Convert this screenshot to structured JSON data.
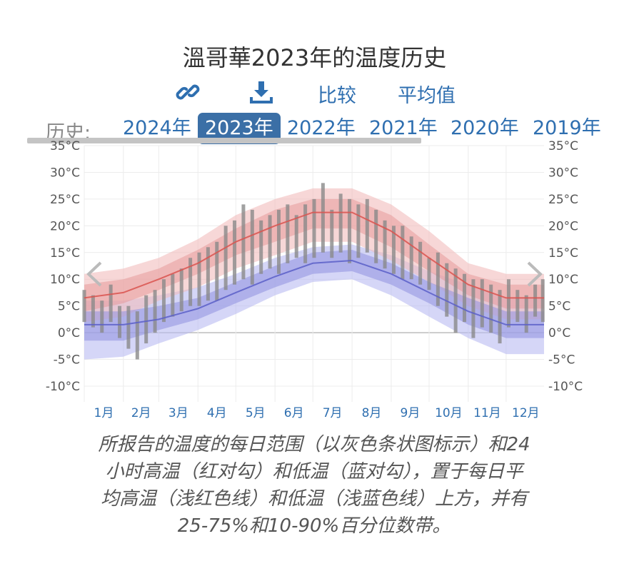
{
  "title": "溫哥華2023年的温度历史",
  "actions": {
    "compare": "比较",
    "average": "平均值"
  },
  "history": {
    "label": "历史:",
    "years": [
      "2024年",
      "2023年",
      "2022年",
      "2021年",
      "2020年",
      "2019年"
    ],
    "selected": "2023年"
  },
  "colors": {
    "accent": "#3b6fa6",
    "link": "#2f6fb0",
    "high": "#d9534f",
    "low": "#5a5fc8",
    "bars": "#8a8a8a"
  },
  "chart_data": {
    "type": "area",
    "title": "",
    "xlabel": "",
    "ylabel": "",
    "ylim": [
      -10,
      35
    ],
    "y_ticks": [
      "35°C",
      "30°C",
      "25°C",
      "20°C",
      "15°C",
      "10°C",
      "5°C",
      "0°C",
      "-5°C",
      "-10°C"
    ],
    "y_tick_values": [
      35,
      30,
      25,
      20,
      15,
      10,
      5,
      0,
      -5,
      -10
    ],
    "months": [
      "1月",
      "2月",
      "3月",
      "4月",
      "5月",
      "6月",
      "7月",
      "8月",
      "9月",
      "10月",
      "11月",
      "12月"
    ],
    "grid": true,
    "x_unit": "day of year 2023",
    "series": [
      {
        "x": [
          1,
          32,
          60,
          91,
          121,
          152,
          182,
          213,
          244,
          274,
          305,
          335,
          365
        ],
        "values": [
          6.5,
          7.5,
          10,
          13,
          17,
          20,
          22.5,
          22.5,
          19,
          14,
          9,
          6.5,
          6.5
        ]
      },
      {
        "x": [
          1,
          32,
          60,
          91,
          121,
          152,
          182,
          213,
          244,
          274,
          305,
          335,
          365
        ],
        "values": [
          1.5,
          1.5,
          2.5,
          4.5,
          7.5,
          10.5,
          13,
          13.5,
          11,
          7.5,
          4,
          1.5,
          1.5
        ]
      }
    ],
    "bands": {
      "high_10_90": [
        [
          1,
          2,
          11
        ],
        [
          32,
          3,
          12
        ],
        [
          60,
          6,
          14
        ],
        [
          91,
          8.5,
          17.5
        ],
        [
          121,
          12,
          22
        ],
        [
          152,
          14.5,
          25
        ],
        [
          182,
          17,
          27
        ],
        [
          213,
          17,
          27
        ],
        [
          244,
          13.5,
          24
        ],
        [
          274,
          9.5,
          19
        ],
        [
          305,
          5,
          13
        ],
        [
          335,
          2.5,
          11
        ],
        [
          365,
          2.5,
          11
        ]
      ],
      "high_25_75": [
        [
          1,
          4,
          9
        ],
        [
          32,
          5.5,
          10
        ],
        [
          60,
          8,
          12
        ],
        [
          91,
          11,
          15.5
        ],
        [
          121,
          14.5,
          19.5
        ],
        [
          152,
          17,
          23
        ],
        [
          182,
          19.5,
          25
        ],
        [
          213,
          19.5,
          25
        ],
        [
          244,
          16,
          22
        ],
        [
          274,
          11.5,
          16.5
        ],
        [
          305,
          7,
          11
        ],
        [
          335,
          4.5,
          9
        ],
        [
          365,
          4.5,
          9
        ]
      ],
      "low_10_90": [
        [
          1,
          -5,
          6
        ],
        [
          32,
          -4.5,
          6
        ],
        [
          60,
          -2,
          7
        ],
        [
          91,
          0.5,
          8.5
        ],
        [
          121,
          3.5,
          11
        ],
        [
          152,
          7,
          14
        ],
        [
          182,
          9.5,
          16
        ],
        [
          213,
          10,
          16.5
        ],
        [
          244,
          7,
          14.5
        ],
        [
          274,
          3,
          11.5
        ],
        [
          305,
          -1,
          9
        ],
        [
          335,
          -4,
          6.5
        ],
        [
          365,
          -4,
          6.5
        ]
      ],
      "low_25_75": [
        [
          1,
          -1.5,
          4
        ],
        [
          32,
          -1.5,
          4
        ],
        [
          60,
          0.5,
          5
        ],
        [
          91,
          2.5,
          6.5
        ],
        [
          121,
          5.5,
          9.5
        ],
        [
          152,
          8.5,
          12.5
        ],
        [
          182,
          11,
          15
        ],
        [
          213,
          11.5,
          15.5
        ],
        [
          244,
          9,
          13
        ],
        [
          274,
          5.5,
          9.5
        ],
        [
          305,
          1.5,
          6.5
        ],
        [
          335,
          -1,
          4
        ],
        [
          365,
          -1,
          4
        ]
      ]
    },
    "daily_ranges": [
      [
        1,
        2,
        8
      ],
      [
        8,
        1,
        7
      ],
      [
        15,
        0,
        6
      ],
      [
        22,
        2,
        9
      ],
      [
        29,
        -1,
        5
      ],
      [
        36,
        -3,
        5
      ],
      [
        43,
        -5,
        4
      ],
      [
        50,
        -2,
        7
      ],
      [
        57,
        0,
        8
      ],
      [
        64,
        2,
        10
      ],
      [
        71,
        3,
        11
      ],
      [
        78,
        4,
        12
      ],
      [
        85,
        5,
        14
      ],
      [
        92,
        5,
        15
      ],
      [
        99,
        6,
        16
      ],
      [
        106,
        6,
        17
      ],
      [
        113,
        8,
        20
      ],
      [
        120,
        9,
        21
      ],
      [
        127,
        10,
        24
      ],
      [
        134,
        9,
        23
      ],
      [
        141,
        11,
        21
      ],
      [
        148,
        12,
        22
      ],
      [
        155,
        11,
        23
      ],
      [
        162,
        13,
        24
      ],
      [
        169,
        14,
        22
      ],
      [
        176,
        13,
        24
      ],
      [
        183,
        14,
        25
      ],
      [
        190,
        15,
        28
      ],
      [
        197,
        14,
        23
      ],
      [
        204,
        15,
        26
      ],
      [
        211,
        13,
        25
      ],
      [
        218,
        14,
        24
      ],
      [
        225,
        15,
        25
      ],
      [
        232,
        13,
        23
      ],
      [
        239,
        12,
        21
      ],
      [
        246,
        11,
        20
      ],
      [
        253,
        10,
        20
      ],
      [
        260,
        10,
        18
      ],
      [
        267,
        9,
        17
      ],
      [
        274,
        8,
        14
      ],
      [
        281,
        5,
        15
      ],
      [
        288,
        3,
        13
      ],
      [
        295,
        0,
        12
      ],
      [
        302,
        2,
        11
      ],
      [
        309,
        -1,
        10
      ],
      [
        316,
        1,
        10
      ],
      [
        323,
        0,
        9
      ],
      [
        330,
        -2,
        8
      ],
      [
        337,
        1,
        10
      ],
      [
        344,
        2,
        8
      ],
      [
        351,
        0,
        7
      ],
      [
        358,
        3,
        9
      ],
      [
        364,
        2,
        10
      ]
    ]
  },
  "caption": [
    "所报告的温度的每日范围（以灰色条状图标示）和24",
    "小时高温（红对勾）和低温（蓝对勾），置于每日平",
    "均高温（浅红色线）和低温（浅蓝色线）上方，并有",
    "25-75%和10-90%百分位数带。"
  ]
}
